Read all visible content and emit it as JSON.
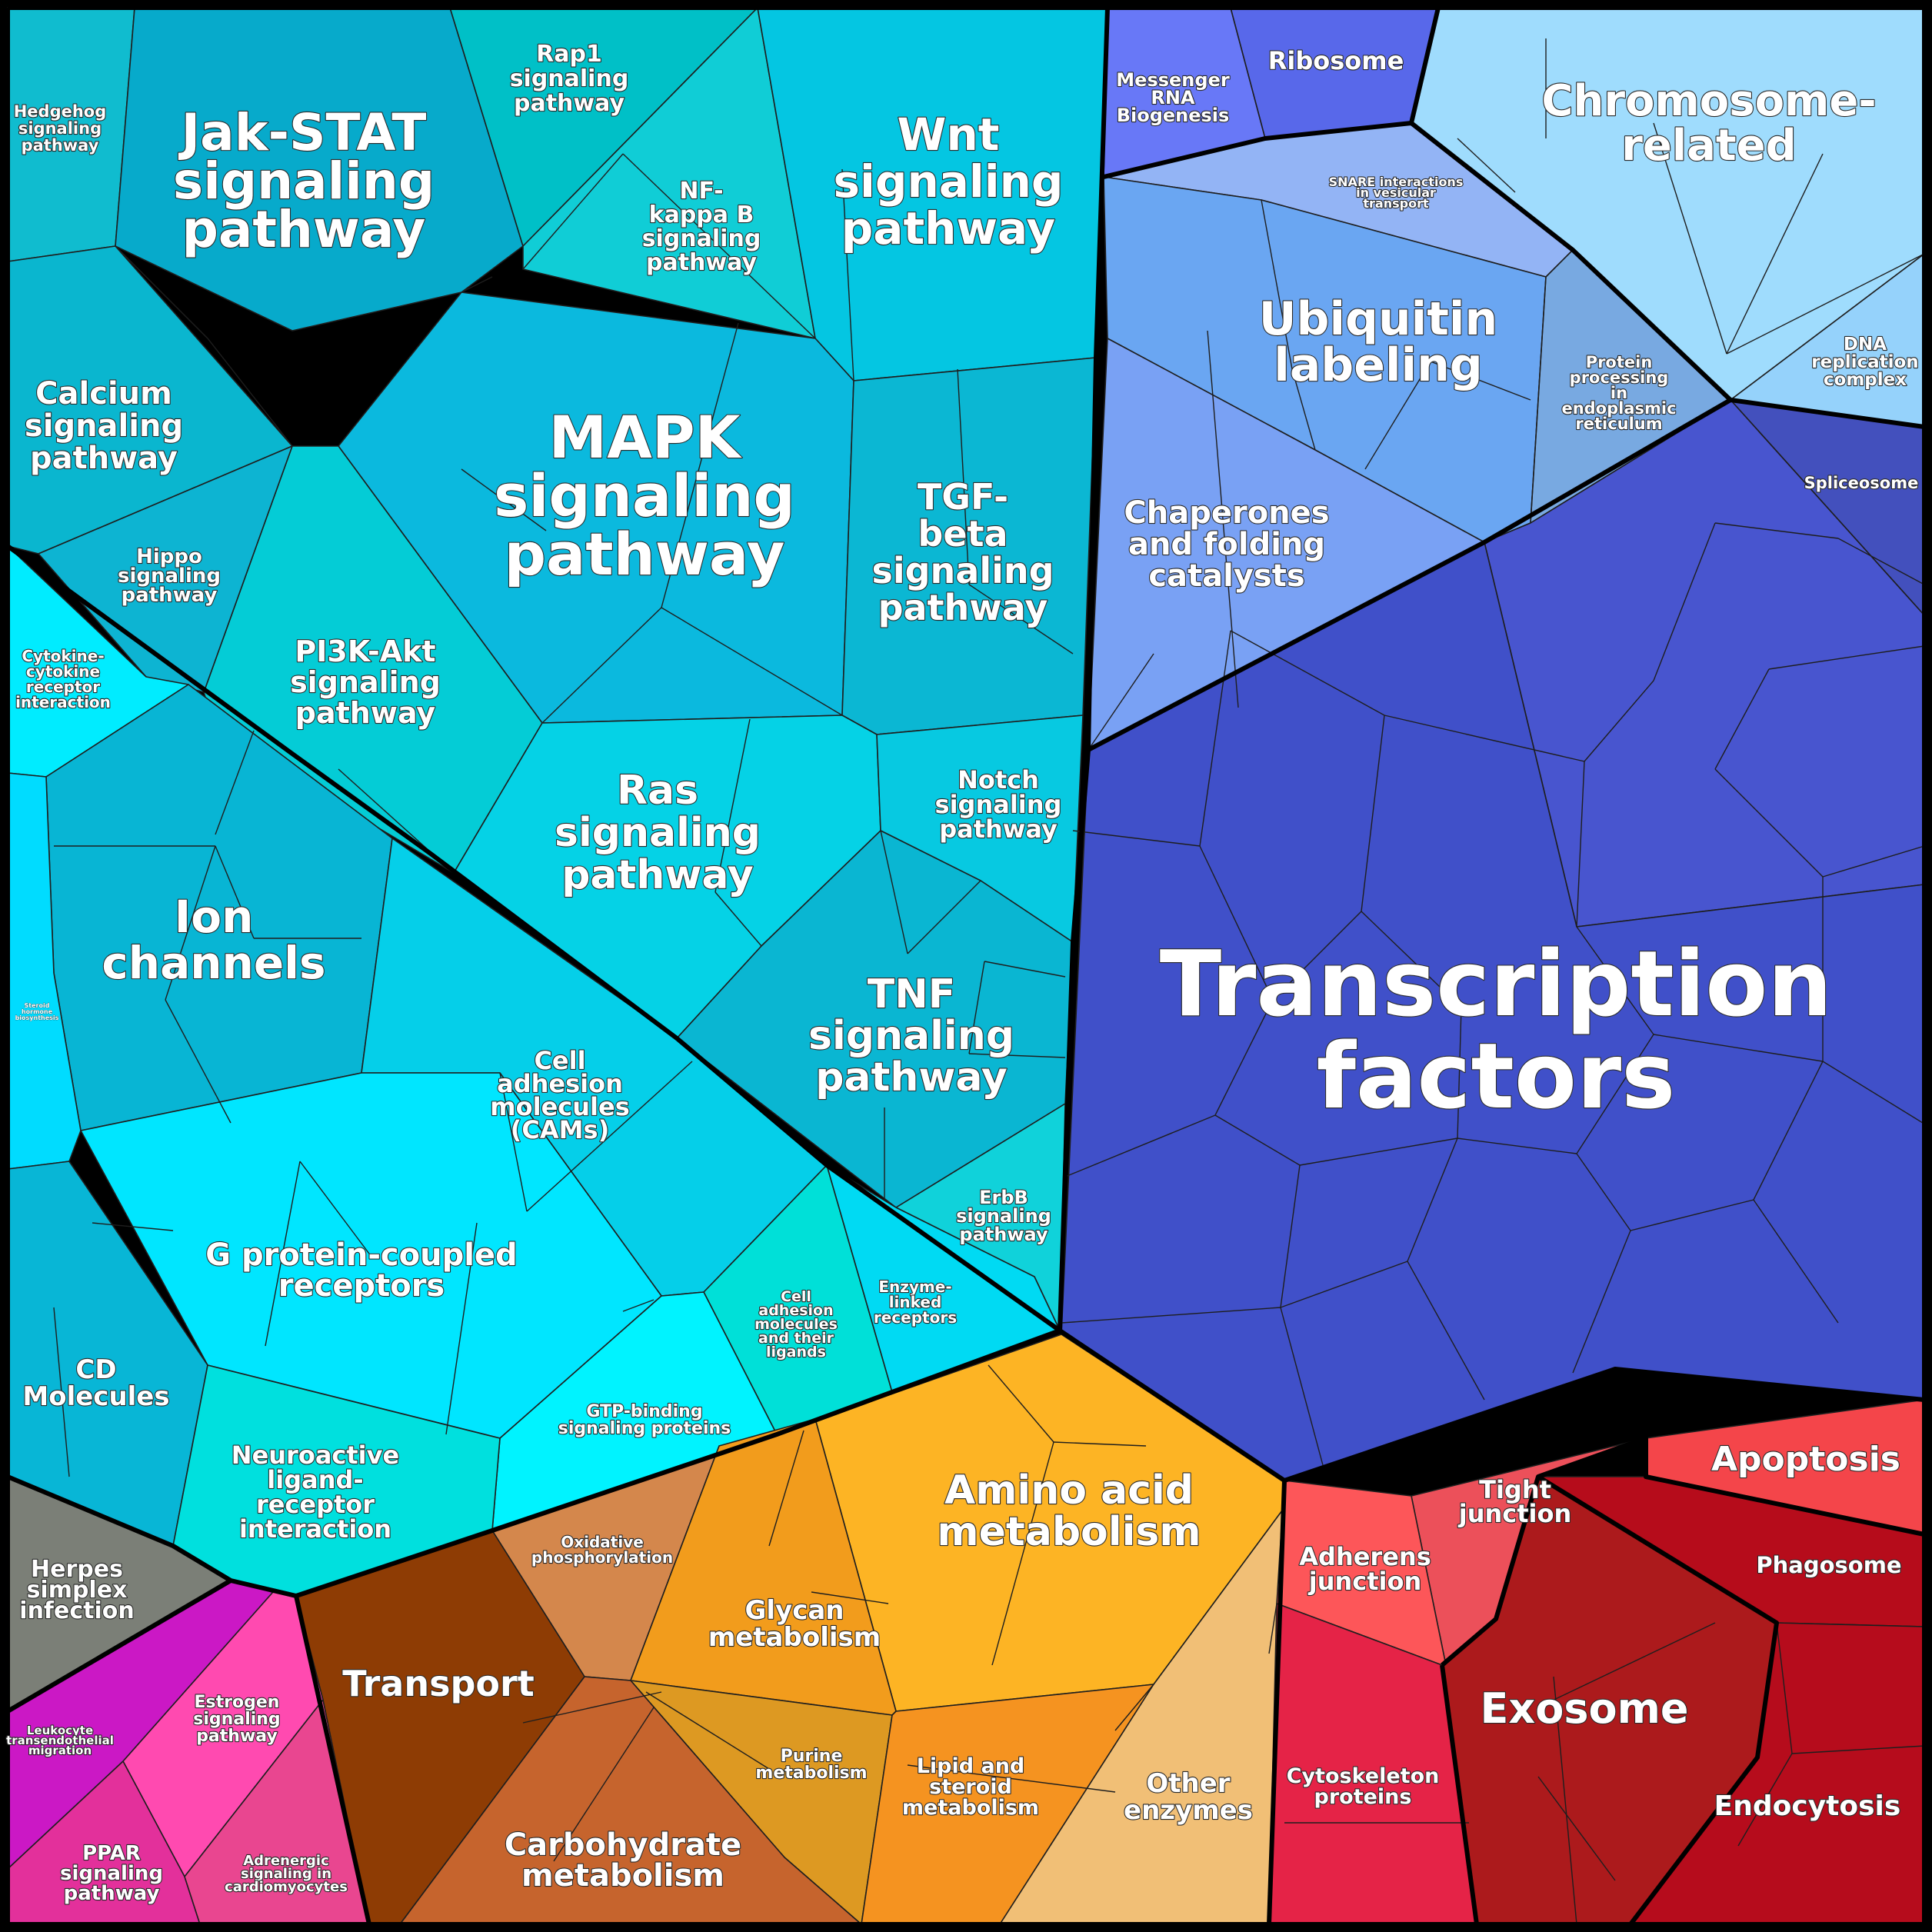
{
  "colors": {
    "signaling": "#08b8d6",
    "cyan_light": "#00e8ff",
    "blue_group": "#6fa6f2",
    "light_blue": "#9fdcfd",
    "navy": "#4451cb",
    "red": "#d01e33",
    "orange": "#f29a1f",
    "brown": "#8b3d05",
    "gray": "#7a7e74",
    "magenta": "#d11fa3"
  },
  "labels": {
    "hedgehog": [
      "Hedgehog",
      "signaling",
      "pathway"
    ],
    "jak_stat": [
      "Jak-STAT",
      "signaling",
      "pathway"
    ],
    "rap1": [
      "Rap1",
      "signaling",
      "pathway"
    ],
    "nf_kappa_b": [
      "NF-",
      "kappa B",
      "signaling",
      "pathway"
    ],
    "wnt": [
      "Wnt",
      "signaling",
      "pathway"
    ],
    "calcium": [
      "Calcium",
      "signaling",
      "pathway"
    ],
    "mapk": [
      "MAPK",
      "signaling",
      "pathway"
    ],
    "tgf_beta": [
      "TGF-",
      "beta",
      "signaling",
      "pathway"
    ],
    "hippo": [
      "Hippo",
      "signaling",
      "pathway"
    ],
    "pi3k_akt": [
      "PI3K-Akt",
      "signaling",
      "pathway"
    ],
    "cytokine": [
      "Cytokine-",
      "cytokine",
      "receptor",
      "interaction"
    ],
    "ras": [
      "Ras",
      "signaling",
      "pathway"
    ],
    "notch": [
      "Notch",
      "signaling",
      "pathway"
    ],
    "ion_channels": [
      "Ion",
      "channels"
    ],
    "steroid": [
      "Steroid",
      "hormone",
      "biosynthesis"
    ],
    "tnf": [
      "TNF",
      "signaling",
      "pathway"
    ],
    "cams": [
      "Cell",
      "adhesion",
      "molecules",
      "(CAMs)"
    ],
    "erbb": [
      "ErbB",
      "signaling",
      "pathway"
    ],
    "gpcr": [
      "G protein-coupled",
      "receptors"
    ],
    "cell_adhesion_ligands": [
      "Cell",
      "adhesion",
      "molecules",
      "and their",
      "ligands"
    ],
    "enzyme_linked": [
      "Enzyme-",
      "linked",
      "receptors"
    ],
    "cd_molecules": [
      "CD",
      "Molecules"
    ],
    "gtp_binding": [
      "GTP-binding",
      "signaling proteins"
    ],
    "neuroactive": [
      "Neuroactive",
      "ligand-",
      "receptor",
      "interaction"
    ],
    "herpes": [
      "Herpes",
      "simplex",
      "infection"
    ],
    "leukocyte": [
      "Leukocyte",
      "transendothelial",
      "migration"
    ],
    "estrogen": [
      "Estrogen",
      "signaling",
      "pathway"
    ],
    "ppar": [
      "PPAR",
      "signaling",
      "pathway"
    ],
    "adrenergic": [
      "Adrenergic",
      "signaling in",
      "cardiomyocytes"
    ],
    "messenger_rna": [
      "Messenger",
      "RNA",
      "Biogenesis"
    ],
    "ribosome": [
      "Ribosome"
    ],
    "chromosome": [
      "Chromosome-",
      "related"
    ],
    "snare": [
      "SNARE interactions",
      "in vesicular",
      "transport"
    ],
    "ubiquitin": [
      "Ubiquitin",
      "labeling"
    ],
    "protein_processing": [
      "Protein",
      "processing",
      "in",
      "endoplasmic",
      "reticulum"
    ],
    "dna_replication": [
      "DNA",
      "replication",
      "complex"
    ],
    "spliceosome": [
      "Spliceosome"
    ],
    "chaperones": [
      "Chaperones",
      "and folding",
      "catalysts"
    ],
    "transcription": [
      "Transcription",
      "factors"
    ],
    "amino_acid": [
      "Amino acid",
      "metabolism"
    ],
    "oxidative": [
      "Oxidative",
      "phosphorylation"
    ],
    "glycan": [
      "Glycan",
      "metabolism"
    ],
    "transport": [
      "Transport"
    ],
    "purine": [
      "Purine",
      "metabolism"
    ],
    "lipid": [
      "Lipid and",
      "steroid",
      "metabolism"
    ],
    "other_enzymes": [
      "Other",
      "enzymes"
    ],
    "carbohydrate": [
      "Carbohydrate",
      "metabolism"
    ],
    "tight_junction": [
      "Tight",
      "junction"
    ],
    "apoptosis": [
      "Apoptosis"
    ],
    "adherens": [
      "Adherens",
      "junction"
    ],
    "phagosome": [
      "Phagosome"
    ],
    "exosome": [
      "Exosome"
    ],
    "cytoskeleton": [
      "Cytoskeleton",
      "proteins"
    ],
    "endocytosis": [
      "Endocytosis"
    ]
  }
}
